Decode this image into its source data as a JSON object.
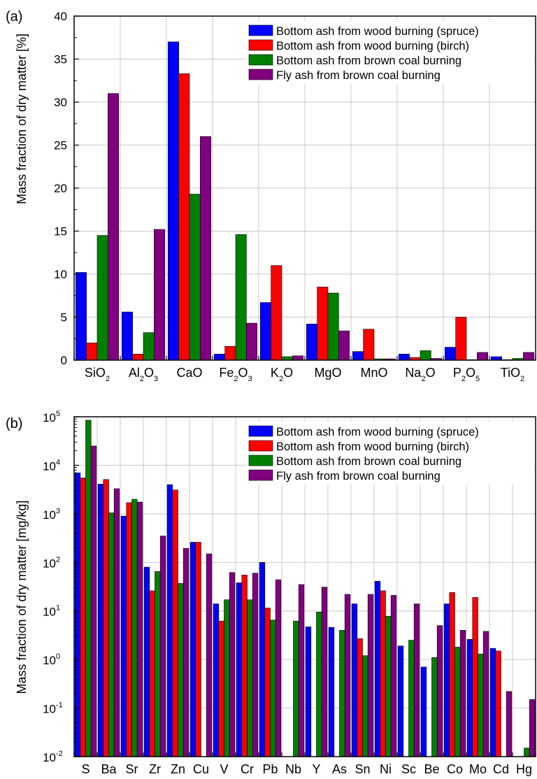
{
  "colors": {
    "spruce": "#0000ff",
    "birch": "#ff0000",
    "brown_bottom": "#008000",
    "fly_ash": "#800080",
    "grid": "#c8c8c8",
    "axis": "#000000"
  },
  "chart_data": [
    {
      "panel": "(a)",
      "type": "bar",
      "ylabel": "Mass fraction of dry matter [%]",
      "xlabel": "",
      "ylim": [
        0,
        40
      ],
      "yticks": [
        "0",
        "5",
        "10",
        "15",
        "20",
        "25",
        "30",
        "35",
        "40"
      ],
      "legend_position": "top-right",
      "grid": true,
      "categories": [
        {
          "base": "SiO",
          "sub1": "2",
          "mid": "",
          "sub2": ""
        },
        {
          "base": "Al",
          "sub1": "2",
          "mid": "O",
          "sub2": "3"
        },
        {
          "base": "CaO",
          "sub1": "",
          "mid": "",
          "sub2": ""
        },
        {
          "base": "Fe",
          "sub1": "2",
          "mid": "O",
          "sub2": "3"
        },
        {
          "base": "K",
          "sub1": "2",
          "mid": "O",
          "sub2": ""
        },
        {
          "base": "MgO",
          "sub1": "",
          "mid": "",
          "sub2": ""
        },
        {
          "base": "MnO",
          "sub1": "",
          "mid": "",
          "sub2": ""
        },
        {
          "base": "Na",
          "sub1": "2",
          "mid": "O",
          "sub2": ""
        },
        {
          "base": "P",
          "sub1": "2",
          "mid": "O",
          "sub2": "5"
        },
        {
          "base": "TiO",
          "sub1": "2",
          "mid": "",
          "sub2": ""
        }
      ],
      "series": [
        {
          "name": "Bottom ash from wood burning (spruce)",
          "color_key": "spruce",
          "values": [
            10.2,
            5.6,
            37.0,
            0.7,
            6.7,
            4.2,
            1.0,
            0.7,
            1.5,
            0.4
          ]
        },
        {
          "name": "Bottom ash from wood burning (birch)",
          "color_key": "birch",
          "values": [
            2.0,
            0.7,
            33.3,
            1.6,
            11.0,
            8.5,
            3.6,
            0.3,
            5.0,
            0.05
          ]
        },
        {
          "name": "Bottom ash from brown coal burning",
          "color_key": "brown_bottom",
          "values": [
            14.5,
            3.2,
            19.3,
            14.6,
            0.4,
            7.8,
            0.15,
            1.1,
            0.05,
            0.2
          ]
        },
        {
          "name": "Fly ash from brown coal burning",
          "color_key": "fly_ash",
          "values": [
            31.0,
            15.2,
            26.0,
            4.3,
            0.5,
            3.4,
            0.15,
            0.2,
            0.9,
            0.9
          ]
        }
      ]
    },
    {
      "panel": "(b)",
      "type": "bar",
      "yscale": "log",
      "ylabel": "Mass fraction of dry matter [mg/kg]",
      "xlabel": "",
      "ylim": [
        0.01,
        100000
      ],
      "yticks": [
        {
          "base": "10",
          "exp": "-2"
        },
        {
          "base": "10",
          "exp": "-1"
        },
        {
          "base": "10",
          "exp": "0"
        },
        {
          "base": "10",
          "exp": "1"
        },
        {
          "base": "10",
          "exp": "2"
        },
        {
          "base": "10",
          "exp": "3"
        },
        {
          "base": "10",
          "exp": "4"
        },
        {
          "base": "10",
          "exp": "5"
        }
      ],
      "legend_position": "top-right",
      "grid": true,
      "categories": [
        "S",
        "Ba",
        "Sr",
        "Zr",
        "Zn",
        "Cu",
        "V",
        "Cr",
        "Pb",
        "Nb",
        "Y",
        "As",
        "Sn",
        "Ni",
        "Sc",
        "Be",
        "Co",
        "Mo",
        "Cd",
        "Hg"
      ],
      "series": [
        {
          "name": "Bottom ash from wood burning (spruce)",
          "color_key": "spruce",
          "values": [
            7000,
            4100,
            900,
            80,
            4000,
            260,
            14,
            38,
            100,
            null,
            4.7,
            4.6,
            14,
            41,
            1.9,
            0.7,
            14,
            2.6,
            1.7,
            null
          ]
        },
        {
          "name": "Bottom ash from wood burning (birch)",
          "color_key": "birch",
          "values": [
            5500,
            5100,
            1700,
            26,
            3100,
            260,
            6.2,
            55,
            11.5,
            null,
            null,
            null,
            2.7,
            26,
            null,
            null,
            24,
            19,
            1.5,
            null
          ]
        },
        {
          "name": "Bottom ash from brown coal burning",
          "color_key": "brown_bottom",
          "values": [
            85000,
            1050,
            2000,
            65,
            37,
            null,
            17,
            17,
            6.5,
            6.2,
            9.5,
            4.0,
            1.2,
            7.8,
            2.5,
            1.1,
            1.8,
            1.3,
            null,
            0.015
          ]
        },
        {
          "name": "Fly ash from brown coal burning",
          "color_key": "fly_ash",
          "values": [
            25000,
            3300,
            1750,
            350,
            195,
            150,
            62,
            60,
            44,
            35,
            31,
            22,
            22,
            21,
            14,
            5,
            4,
            3.8,
            0.22,
            0.15
          ]
        }
      ]
    }
  ]
}
